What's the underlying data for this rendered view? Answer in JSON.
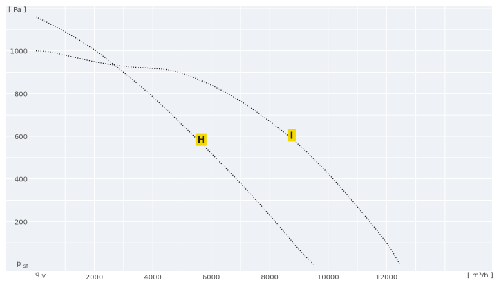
{
  "chart_data": {
    "type": "line",
    "title": "",
    "xlabel": "",
    "ylabel": "",
    "y_unit": "[ Pa ]",
    "x_unit": "[ m³/h ]",
    "y_axis_symbol": "p",
    "y_axis_symbol_sub": "sf",
    "x_axis_symbol": "q",
    "x_axis_symbol_sub": "V",
    "xlim": [
      0,
      14500
    ],
    "ylim": [
      0,
      1200
    ],
    "x_ticks": [
      2000,
      4000,
      6000,
      8000,
      10000,
      12000
    ],
    "x_tick_labels": [
      "2000",
      "4000",
      "6000",
      "8000",
      "10000",
      "12000"
    ],
    "y_ticks": [
      200,
      400,
      600,
      800,
      1000
    ],
    "y_tick_labels": [
      "200",
      "400",
      "600",
      "800",
      "1000"
    ],
    "grid": true,
    "colors": {
      "background": "#eef1f6",
      "grid": "#ffffff",
      "curve": "#1a1a1a",
      "label_bg": "#f5d800",
      "axis_text": "#555555"
    },
    "series": [
      {
        "name": "H",
        "label_point": [
          5650,
          585
        ],
        "x": [
          0,
          1000,
          2000,
          3000,
          4000,
          5000,
          6000,
          7000,
          8000,
          9000,
          9500
        ],
        "y": [
          1160,
          1090,
          1005,
          900,
          785,
          655,
          520,
          380,
          230,
          70,
          0
        ]
      },
      {
        "name": "I",
        "label_point": [
          8750,
          605
        ],
        "x": [
          0,
          500,
          1000,
          2000,
          3000,
          4000,
          4500,
          5000,
          6000,
          7000,
          8000,
          9000,
          10000,
          11000,
          12000,
          12450
        ],
        "y": [
          1000,
          995,
          980,
          950,
          928,
          918,
          912,
          895,
          840,
          765,
          670,
          560,
          425,
          270,
          100,
          0
        ]
      }
    ]
  }
}
